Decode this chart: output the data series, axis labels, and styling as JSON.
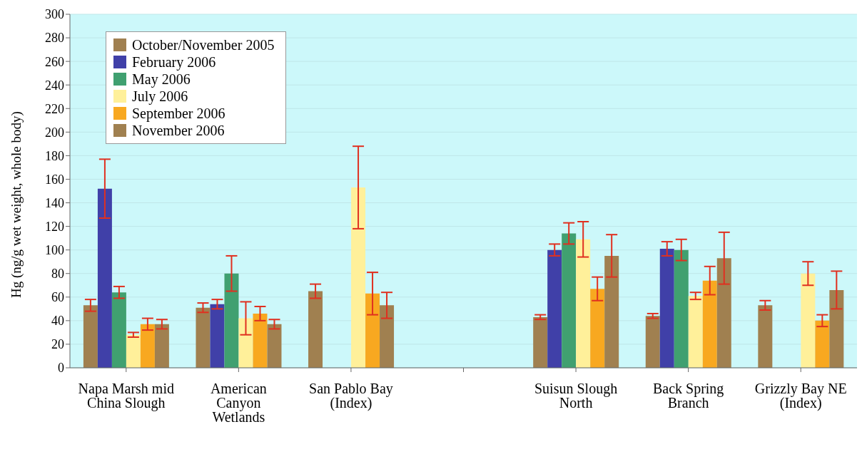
{
  "chart_data": {
    "type": "bar",
    "ylabel": "Hg (ng/g wet weight, whole body)",
    "categories": [
      "Napa Marsh mid China Slough",
      "American Canyon Wetlands",
      "San Pablo Bay (Index)",
      null,
      "Suisun Slough North",
      "Back Spring Branch",
      "Grizzly Bay NE (Index)"
    ],
    "series": [
      {
        "name": "October/November 2005",
        "color": "#a08050",
        "values": [
          53,
          51,
          65,
          null,
          43,
          44,
          53
        ],
        "errors": [
          5,
          4,
          6,
          null,
          2,
          2,
          4
        ]
      },
      {
        "name": "February 2006",
        "color": "#4040a8",
        "values": [
          152,
          54,
          null,
          null,
          100,
          101,
          null
        ],
        "errors": [
          25,
          4,
          null,
          null,
          5,
          6,
          null
        ]
      },
      {
        "name": "May 2006",
        "color": "#40a070",
        "values": [
          64,
          80,
          null,
          null,
          114,
          100,
          null
        ],
        "errors": [
          5,
          15,
          null,
          null,
          9,
          9,
          null
        ]
      },
      {
        "name": "July 2006",
        "color": "#fff09a",
        "values": [
          28,
          42,
          153,
          null,
          109,
          61,
          80
        ],
        "errors": [
          2,
          14,
          35,
          null,
          15,
          3,
          10
        ]
      },
      {
        "name": "September 2006",
        "color": "#f8a820",
        "values": [
          37,
          46,
          63,
          null,
          67,
          74,
          40
        ],
        "errors": [
          5,
          6,
          18,
          null,
          10,
          12,
          5
        ]
      },
      {
        "name": "November 2006",
        "color": "#a08050",
        "values": [
          37,
          37,
          53,
          null,
          95,
          93,
          66
        ],
        "errors": [
          4,
          4,
          11,
          null,
          18,
          22,
          16
        ]
      }
    ],
    "ylim": [
      0,
      300
    ],
    "yticks": [
      0,
      20,
      40,
      60,
      80,
      100,
      120,
      140,
      160,
      180,
      200,
      220,
      240,
      260,
      280,
      300
    ],
    "grid": "y",
    "legend": "top left"
  }
}
